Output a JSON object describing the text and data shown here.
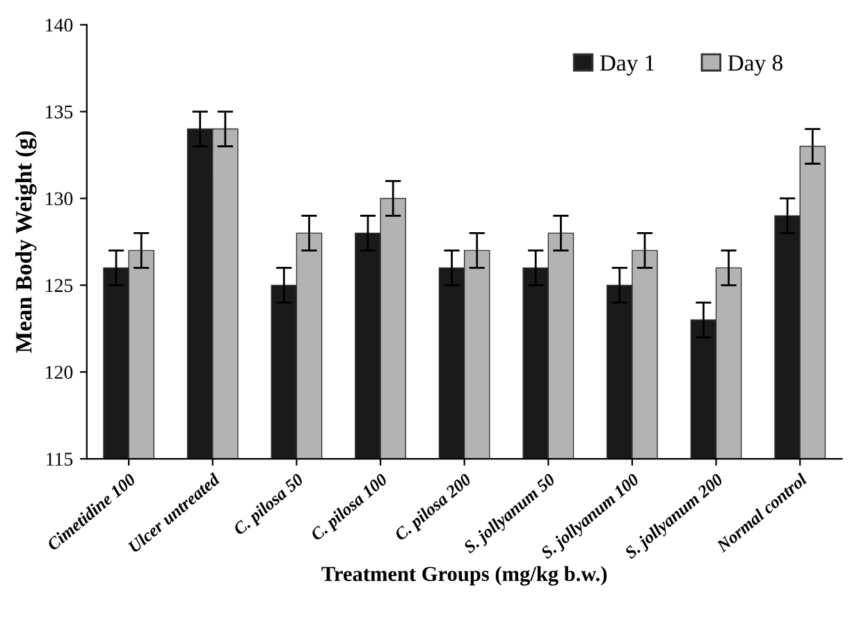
{
  "chart_data": {
    "type": "bar",
    "xlabel": "Treatment Groups (mg/kg b.w.)",
    "ylabel": "Mean Body Weight (g)",
    "categories": [
      "Cimetidine 100",
      "Ulcer untreated",
      "C. pilosa 50",
      "C. pilosa 100",
      "C. pilosa 200",
      "S. jollyanum 50",
      "S. jollyanum 100",
      "S. jollyanum 200",
      "Normal control"
    ],
    "series": [
      {
        "name": "Day 1",
        "color": "#1a1a1a",
        "values": [
          126,
          134,
          125,
          128,
          126,
          126,
          125,
          123,
          129
        ],
        "errors": [
          1,
          1,
          1,
          1,
          1,
          1,
          1,
          1,
          1
        ]
      },
      {
        "name": "Day 8",
        "color": "#b3b3b3",
        "values": [
          127,
          134,
          128,
          130,
          127,
          128,
          127,
          126,
          133
        ],
        "errors": [
          1,
          1,
          1,
          1,
          1,
          1,
          1,
          1,
          1
        ]
      }
    ],
    "ylim": [
      115,
      140
    ],
    "yticks": [
      115,
      120,
      125,
      130,
      135,
      140
    ],
    "grid": false,
    "legend": "top right"
  }
}
